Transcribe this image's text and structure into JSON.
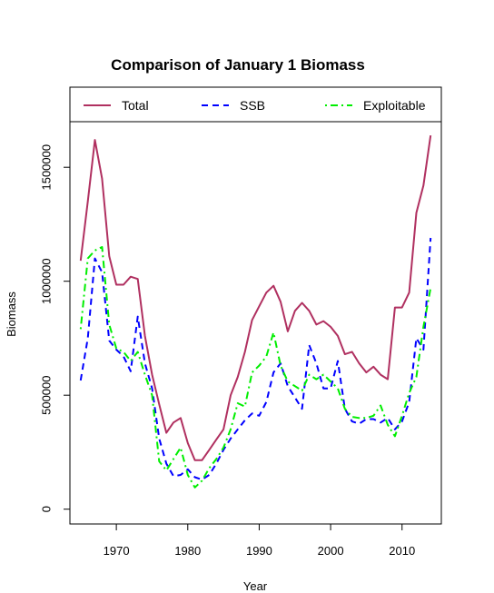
{
  "chart_data": {
    "type": "line",
    "title": "Comparison of January 1 Biomass",
    "xlabel": "Year",
    "ylabel": "Biomass",
    "xlim": [
      1963.5,
      2015.5
    ],
    "ylim": [
      -65000,
      1700000
    ],
    "xticks": [
      1970,
      1980,
      1990,
      2000,
      2010
    ],
    "yticks": [
      0,
      500000,
      1000000,
      1500000
    ],
    "ytick_labels": [
      "0",
      "500000",
      "1000000",
      "1500000"
    ],
    "legend_position": "top",
    "x": [
      1965,
      1966,
      1967,
      1968,
      1969,
      1970,
      1971,
      1972,
      1973,
      1974,
      1975,
      1976,
      1977,
      1978,
      1979,
      1980,
      1981,
      1982,
      1983,
      1984,
      1985,
      1986,
      1987,
      1988,
      1989,
      1990,
      1991,
      1992,
      1993,
      1994,
      1995,
      1996,
      1997,
      1998,
      1999,
      2000,
      2001,
      2002,
      2003,
      2004,
      2005,
      2006,
      2007,
      2008,
      2009,
      2010,
      2011,
      2012,
      2013,
      2014
    ],
    "series": [
      {
        "name": "Total",
        "color": "#b03060",
        "dash": "solid",
        "values": [
          1090000,
          1350000,
          1620000,
          1450000,
          1110000,
          985000,
          985000,
          1020000,
          1010000,
          760000,
          590000,
          460000,
          335000,
          380000,
          400000,
          290000,
          215000,
          215000,
          260000,
          305000,
          350000,
          500000,
          580000,
          690000,
          830000,
          890000,
          950000,
          980000,
          910000,
          780000,
          870000,
          905000,
          870000,
          810000,
          825000,
          800000,
          760000,
          680000,
          690000,
          640000,
          600000,
          625000,
          590000,
          570000,
          885000,
          885000,
          950000,
          1300000,
          1420000,
          1640000
        ]
      },
      {
        "name": "SSB",
        "color": "#0000ff",
        "dash": "dashed",
        "values": [
          565000,
          750000,
          1100000,
          1040000,
          740000,
          700000,
          670000,
          605000,
          845000,
          640000,
          530000,
          310000,
          200000,
          145000,
          150000,
          175000,
          140000,
          130000,
          150000,
          200000,
          260000,
          310000,
          350000,
          390000,
          420000,
          410000,
          470000,
          600000,
          640000,
          540000,
          490000,
          440000,
          720000,
          640000,
          530000,
          530000,
          650000,
          440000,
          385000,
          375000,
          395000,
          395000,
          380000,
          400000,
          350000,
          385000,
          470000,
          750000,
          700000,
          1190000
        ]
      },
      {
        "name": "Exploitable",
        "color": "#00ee00",
        "dash": "dotdash",
        "values": [
          790000,
          1100000,
          1135000,
          1150000,
          810000,
          705000,
          690000,
          650000,
          690000,
          590000,
          500000,
          210000,
          170000,
          220000,
          270000,
          150000,
          95000,
          125000,
          180000,
          220000,
          270000,
          350000,
          465000,
          450000,
          600000,
          630000,
          670000,
          775000,
          630000,
          560000,
          540000,
          520000,
          590000,
          570000,
          590000,
          560000,
          530000,
          440000,
          405000,
          400000,
          400000,
          410000,
          455000,
          370000,
          320000,
          410000,
          510000,
          580000,
          800000,
          970000
        ]
      }
    ]
  }
}
